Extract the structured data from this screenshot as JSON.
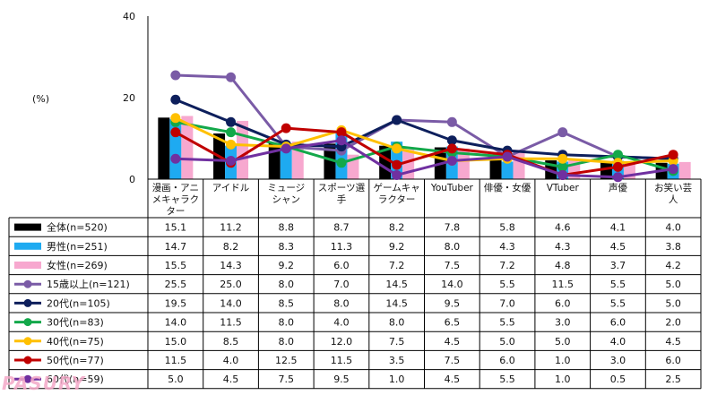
{
  "chart_data": {
    "type": "bar+line",
    "ylabel": "(%)",
    "ylim": [
      0,
      40
    ],
    "yticks": [
      0,
      20,
      40
    ],
    "categories": [
      "漫画・アニメキャラクター",
      "アイドル",
      "ミュージシャン",
      "スポーツ選手",
      "ゲームキャラクター",
      "YouTuber",
      "俳優・女優",
      "VTuber",
      "声優",
      "お笑い芸人"
    ],
    "category_lines": [
      [
        "漫画・アニ",
        "メキャラク",
        "ター"
      ],
      [
        "アイドル"
      ],
      [
        "ミュージ",
        "シャン"
      ],
      [
        "スポーツ選",
        "手"
      ],
      [
        "ゲームキャ",
        "ラクター"
      ],
      [
        "YouTuber"
      ],
      [
        "俳優・女優"
      ],
      [
        "VTuber"
      ],
      [
        "声優"
      ],
      [
        "お笑い芸",
        "人"
      ]
    ],
    "series": [
      {
        "name": "全体(n=520)",
        "kind": "bar",
        "color": "#000000",
        "values": [
          15.1,
          11.2,
          8.8,
          8.7,
          8.2,
          7.8,
          5.8,
          4.6,
          4.1,
          4.0
        ]
      },
      {
        "name": "男性(n=251)",
        "kind": "bar",
        "color": "#1eaaf1",
        "values": [
          14.7,
          8.2,
          8.3,
          11.3,
          9.2,
          8.0,
          4.3,
          4.3,
          4.5,
          3.8
        ]
      },
      {
        "name": "女性(n=269)",
        "kind": "bar",
        "color": "#f7a8cf",
        "values": [
          15.5,
          14.3,
          9.2,
          6.0,
          7.2,
          7.5,
          7.2,
          4.8,
          3.7,
          4.2
        ]
      },
      {
        "name": "15歳以上(n=121)",
        "kind": "line",
        "color": "#7a5ba6",
        "values": [
          25.5,
          25.0,
          8.0,
          7.0,
          14.5,
          14.0,
          5.5,
          11.5,
          5.5,
          5.0
        ]
      },
      {
        "name": "20代(n=105)",
        "kind": "line",
        "color": "#0d1f5c",
        "values": [
          19.5,
          14.0,
          8.5,
          8.0,
          14.5,
          9.5,
          7.0,
          6.0,
          5.5,
          5.0
        ]
      },
      {
        "name": "30代(n=83)",
        "kind": "line",
        "color": "#13a84a",
        "values": [
          14.0,
          11.5,
          8.0,
          4.0,
          8.0,
          6.5,
          5.5,
          3.0,
          6.0,
          2.0
        ]
      },
      {
        "name": "40代(n=75)",
        "kind": "line",
        "color": "#ffc000",
        "values": [
          15.0,
          8.5,
          8.0,
          12.0,
          7.5,
          4.5,
          5.0,
          5.0,
          4.0,
          4.5
        ]
      },
      {
        "name": "50代(n=77)",
        "kind": "line",
        "color": "#c00000",
        "values": [
          11.5,
          4.0,
          12.5,
          11.5,
          3.5,
          7.5,
          6.0,
          1.0,
          3.0,
          6.0
        ]
      },
      {
        "name": "60代(n=59)",
        "kind": "line",
        "color": "#7030a0",
        "values": [
          5.0,
          4.5,
          7.5,
          9.5,
          1.0,
          4.5,
          5.5,
          1.0,
          0.5,
          2.5
        ]
      }
    ],
    "table_values": [
      [
        "15.1",
        "11.2",
        "8.8",
        "8.7",
        "8.2",
        "7.8",
        "5.8",
        "4.6",
        "4.1",
        "4.0"
      ],
      [
        "14.7",
        "8.2",
        "8.3",
        "11.3",
        "9.2",
        "8.0",
        "4.3",
        "4.3",
        "4.5",
        "3.8"
      ],
      [
        "15.5",
        "14.3",
        "9.2",
        "6.0",
        "7.2",
        "7.5",
        "7.2",
        "4.8",
        "3.7",
        "4.2"
      ],
      [
        "25.5",
        "25.0",
        "8.0",
        "7.0",
        "14.5",
        "14.0",
        "5.5",
        "11.5",
        "5.5",
        "5.0"
      ],
      [
        "19.5",
        "14.0",
        "8.5",
        "8.0",
        "14.5",
        "9.5",
        "7.0",
        "6.0",
        "5.5",
        "5.0"
      ],
      [
        "14.0",
        "11.5",
        "8.0",
        "4.0",
        "8.0",
        "6.5",
        "5.5",
        "3.0",
        "6.0",
        "2.0"
      ],
      [
        "15.0",
        "8.5",
        "8.0",
        "12.0",
        "7.5",
        "4.5",
        "5.0",
        "5.0",
        "4.0",
        "4.5"
      ],
      [
        "11.5",
        "4.0",
        "12.5",
        "11.5",
        "3.5",
        "7.5",
        "6.0",
        "1.0",
        "3.0",
        "6.0"
      ],
      [
        "5.0",
        "4.5",
        "7.5",
        "9.5",
        "1.0",
        "4.5",
        "5.5",
        "1.0",
        "0.5",
        "2.5"
      ]
    ]
  },
  "watermark": "PASURY"
}
